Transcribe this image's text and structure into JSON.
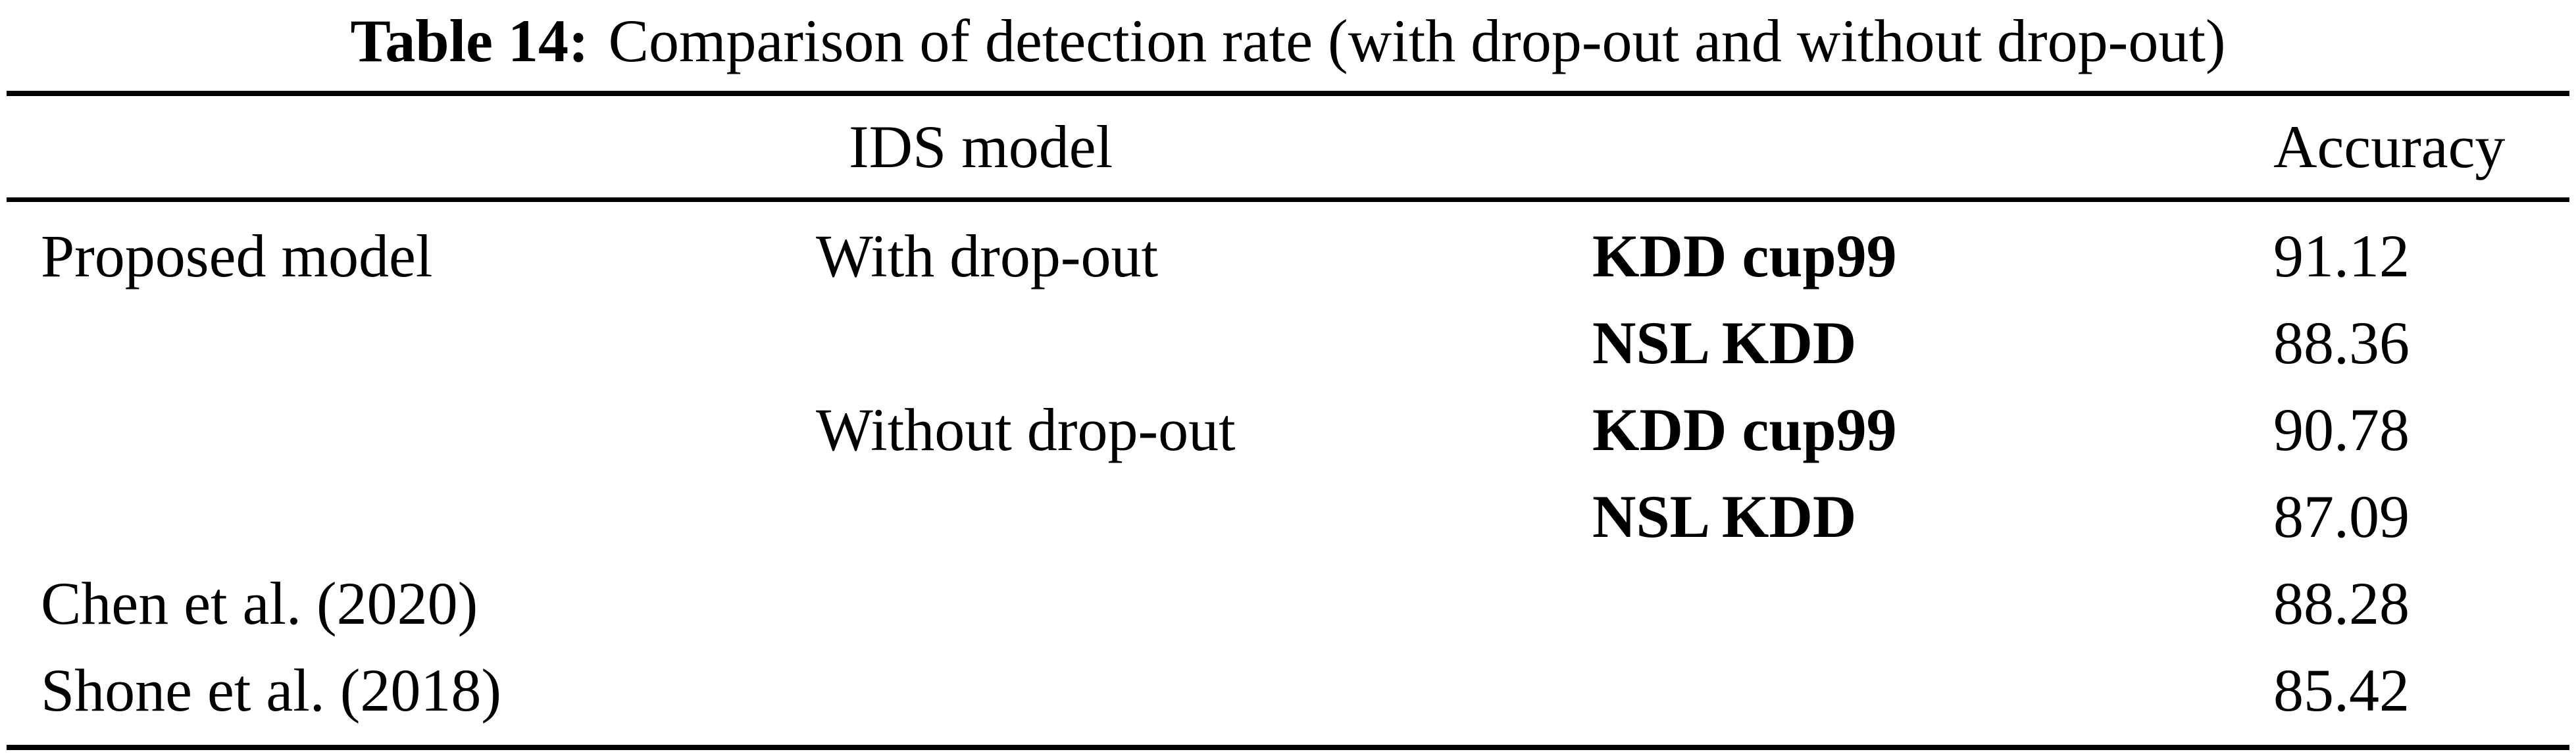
{
  "page": {
    "background_color": "#ffffff",
    "text_color": "#000000",
    "rule_color": "#000000"
  },
  "caption": {
    "label": "Table 14:",
    "text": "Comparison of detection rate (with drop-out and without drop-out)"
  },
  "table": {
    "header": {
      "model": "IDS model",
      "accuracy": "Accuracy"
    },
    "rows": [
      {
        "model": "Proposed model",
        "variant": "With drop-out",
        "dataset": "KDD cup99",
        "accuracy": "91.12"
      },
      {
        "model": "",
        "variant": "",
        "dataset": "NSL KDD",
        "accuracy": "88.36"
      },
      {
        "model": "",
        "variant": "Without drop-out",
        "dataset": "KDD cup99",
        "accuracy": "90.78"
      },
      {
        "model": "",
        "variant": "",
        "dataset": "NSL KDD",
        "accuracy": "87.09"
      },
      {
        "model": "Chen et al. (2020)",
        "variant": "",
        "dataset": "",
        "accuracy": "88.28"
      },
      {
        "model": "Shone et al. (2018)",
        "variant": "",
        "dataset": "",
        "accuracy": "85.42"
      }
    ]
  }
}
